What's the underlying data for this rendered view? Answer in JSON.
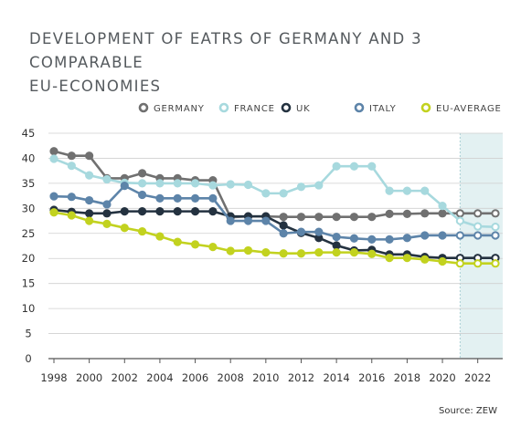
{
  "title_lines": [
    "DEVELOPMENT OF EATRS OF GERMANY AND 3 COMPARABLE",
    "EU-ECONOMIES"
  ],
  "source": "Source: ZEW",
  "chart_data": {
    "type": "line",
    "title": "DEVELOPMENT OF EATRS OF GERMANY AND 3 COMPARABLE EU-ECONOMIES",
    "xlabel": "",
    "ylabel": "",
    "ylim": [
      0,
      45
    ],
    "yticks": [
      0,
      5,
      10,
      15,
      20,
      25,
      30,
      35,
      40,
      45
    ],
    "xticks": [
      1998,
      2000,
      2002,
      2004,
      2006,
      2008,
      2010,
      2012,
      2014,
      2016,
      2018,
      2020,
      2022
    ],
    "xlim": [
      1998,
      2023
    ],
    "grid": "horizontal",
    "legend_position": "top",
    "shaded_region": {
      "from": 2021,
      "to": 2023,
      "color": "#e3f1f2"
    },
    "x": [
      1998,
      1999,
      2000,
      2001,
      2002,
      2003,
      2004,
      2005,
      2006,
      2007,
      2008,
      2009,
      2010,
      2011,
      2012,
      2013,
      2014,
      2015,
      2016,
      2017,
      2018,
      2019,
      2020,
      2021,
      2022,
      2023
    ],
    "series": [
      {
        "name": "GERMANY",
        "color": "#707070",
        "values": [
          41.4,
          40.5,
          40.5,
          36,
          36,
          37,
          36,
          36,
          35.6,
          35.6,
          28.2,
          28.4,
          28.4,
          28.3,
          28.3,
          28.3,
          28.3,
          28.3,
          28.3,
          28.9,
          28.9,
          29,
          29,
          29,
          29,
          29
        ]
      },
      {
        "name": "FRANCE",
        "color": "#a7d9de",
        "values": [
          39.9,
          38.5,
          36.6,
          35.8,
          35.1,
          35,
          35,
          35,
          35,
          34.6,
          34.8,
          34.7,
          33,
          33,
          34.3,
          34.6,
          38.4,
          38.4,
          38.4,
          33.5,
          33.5,
          33.5,
          30.5,
          27.5,
          26.4,
          26.3
        ]
      },
      {
        "name": "UK",
        "color": "#243240",
        "values": [
          29.7,
          29.3,
          29,
          29,
          29.4,
          29.4,
          29.4,
          29.4,
          29.4,
          29.4,
          28.4,
          28.4,
          28.4,
          26.6,
          25.1,
          24.1,
          22.6,
          21.6,
          21.7,
          20.8,
          20.8,
          20.3,
          20.1,
          20.1,
          20.1,
          20.1
        ]
      },
      {
        "name": "ITALY",
        "color": "#5d84a9",
        "values": [
          32.4,
          32.3,
          31.6,
          30.8,
          34.5,
          32.7,
          32,
          32,
          32,
          32,
          27.5,
          27.5,
          27.5,
          25,
          25.3,
          25.3,
          24.3,
          24,
          23.8,
          23.8,
          24.1,
          24.6,
          24.6,
          24.6,
          24.6,
          24.6
        ]
      },
      {
        "name": "EU-AVERAGE",
        "color": "#c2d21f",
        "values": [
          29.2,
          28.6,
          27.5,
          26.9,
          26.1,
          25.4,
          24.4,
          23.3,
          22.8,
          22.3,
          21.5,
          21.6,
          21.2,
          21,
          21,
          21.2,
          21.2,
          21.2,
          20.9,
          20.1,
          20.1,
          19.8,
          19.4,
          19,
          19,
          19
        ]
      }
    ]
  }
}
